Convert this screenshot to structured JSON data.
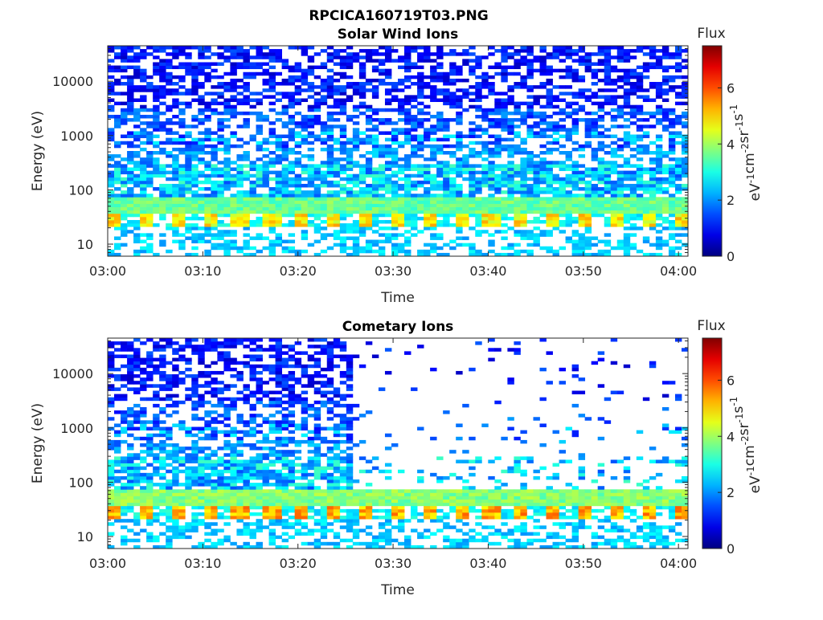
{
  "figure": {
    "title": "RPCICA160719T03.PNG"
  },
  "chart_data": [
    {
      "type": "heatmap",
      "title": "Solar Wind Ions",
      "xlabel": "Time",
      "ylabel": "Energy (eV)",
      "x_ticks": [
        "03:00",
        "03:10",
        "03:20",
        "03:30",
        "03:40",
        "03:50",
        "04:00"
      ],
      "x_range": [
        "03:00",
        "04:01"
      ],
      "y_scale": "log",
      "y_ticks": [
        "10",
        "100",
        "1000",
        "10000"
      ],
      "y_range": [
        6,
        45000
      ],
      "colorbar": {
        "label": "Flux",
        "unit_base": "eV",
        "ticks": [
          "0",
          "2",
          "4",
          "6"
        ],
        "range": [
          0,
          7.5
        ],
        "colormap": "jet"
      },
      "band": {
        "energy_low": 35,
        "energy_high": 70,
        "value": 3.6
      },
      "peaks": {
        "energy": 28,
        "value": 4.8,
        "spacing_min": 3.3
      },
      "background": {
        "density_high": 0.55,
        "value_high": 0.6
      }
    },
    {
      "type": "heatmap",
      "title": "Cometary Ions",
      "xlabel": "Time",
      "ylabel": "Energy (eV)",
      "x_ticks": [
        "03:00",
        "03:10",
        "03:20",
        "03:30",
        "03:40",
        "03:50",
        "04:00"
      ],
      "x_range": [
        "03:00",
        "04:01"
      ],
      "y_scale": "log",
      "y_ticks": [
        "10",
        "100",
        "1000",
        "10000"
      ],
      "y_range": [
        6,
        45000
      ],
      "colorbar": {
        "label": "Flux",
        "unit_base": "eV",
        "ticks": [
          "0",
          "2",
          "4",
          "6"
        ],
        "range": [
          0,
          7.5
        ],
        "colormap": "jet"
      },
      "band": {
        "energy_low": 35,
        "energy_high": 70,
        "value": 3.8
      },
      "peaks": {
        "energy": 28,
        "value": 5.3,
        "spacing_min": 3.3
      },
      "background": {
        "cutoff_time": "03:26",
        "density_high": 0.55,
        "density_low": 0.05
      }
    }
  ]
}
